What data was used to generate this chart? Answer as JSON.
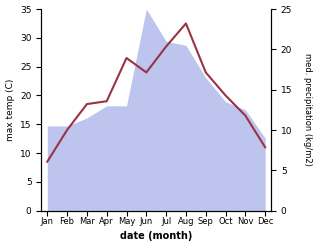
{
  "months": [
    "Jan",
    "Feb",
    "Mar",
    "Apr",
    "May",
    "Jun",
    "Jul",
    "Aug",
    "Sep",
    "Oct",
    "Nov",
    "Dec"
  ],
  "temp_max": [
    8.5,
    14.0,
    18.5,
    19.0,
    26.5,
    24.0,
    28.5,
    32.5,
    24.0,
    20.0,
    16.5,
    11.0
  ],
  "precipitation": [
    10.5,
    10.5,
    11.5,
    13.0,
    13.0,
    25.0,
    21.0,
    20.5,
    16.5,
    13.5,
    12.5,
    9.0
  ],
  "temp_color": "#993344",
  "precip_fill_color": "#bdc5ee",
  "temp_ylim": [
    0,
    35
  ],
  "precip_ylim": [
    0,
    25
  ],
  "temp_yticks": [
    0,
    5,
    10,
    15,
    20,
    25,
    30,
    35
  ],
  "precip_yticks": [
    0,
    5,
    10,
    15,
    20,
    25
  ],
  "xlabel": "date (month)",
  "ylabel_left": "max temp (C)",
  "ylabel_right": "med. precipitation (kg/m2)"
}
